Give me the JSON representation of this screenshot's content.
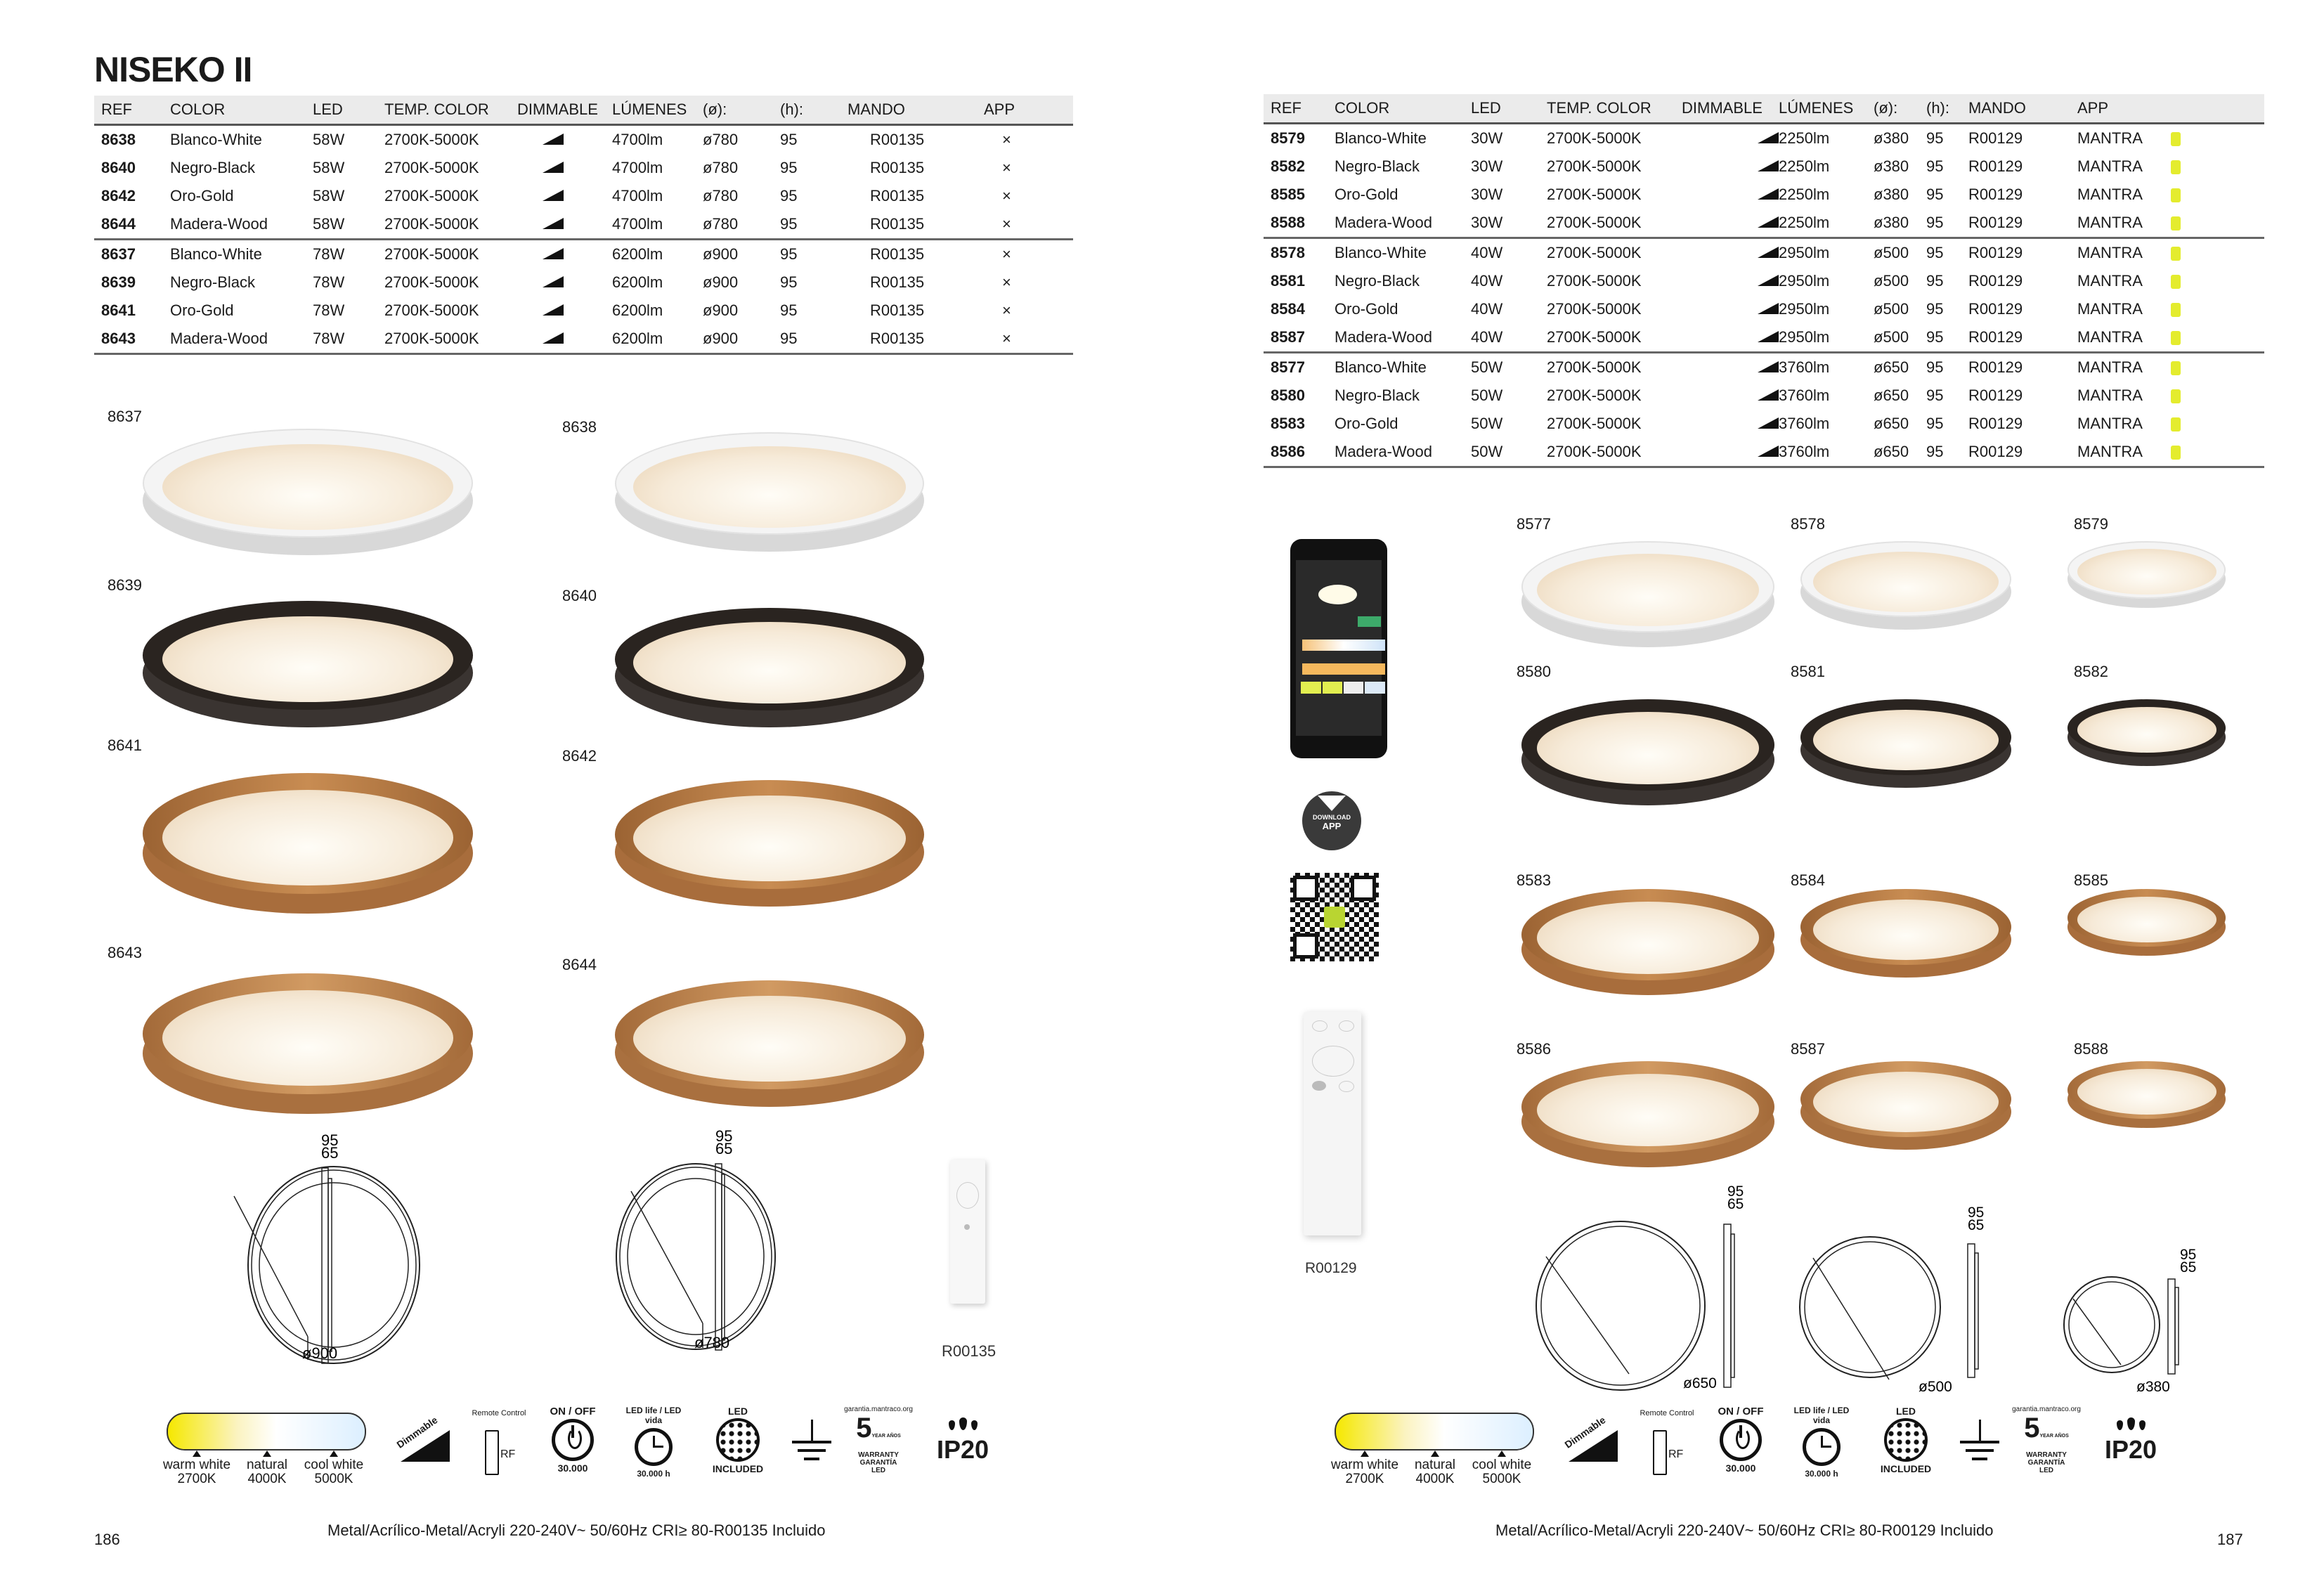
{
  "title": "NISEKO II",
  "headers": [
    "REF",
    "COLOR",
    "LED",
    "TEMP. COLOR",
    "DIMMABLE",
    "LÚMENES",
    "(ø):",
    "(h):",
    "MANDO",
    "APP"
  ],
  "left_table": {
    "rows": [
      {
        "ref": "8638",
        "color": "Blanco-White",
        "led": "58W",
        "temp": "2700K-5000K",
        "lumens": "4700lm",
        "diameter": "ø780",
        "height": "95",
        "mando": "R00135",
        "app": "×"
      },
      {
        "ref": "8640",
        "color": "Negro-Black",
        "led": "58W",
        "temp": "2700K-5000K",
        "lumens": "4700lm",
        "diameter": "ø780",
        "height": "95",
        "mando": "R00135",
        "app": "×"
      },
      {
        "ref": "8642",
        "color": "Oro-Gold",
        "led": "58W",
        "temp": "2700K-5000K",
        "lumens": "4700lm",
        "diameter": "ø780",
        "height": "95",
        "mando": "R00135",
        "app": "×"
      },
      {
        "ref": "8644",
        "color": "Madera-Wood",
        "led": "58W",
        "temp": "2700K-5000K",
        "lumens": "4700lm",
        "diameter": "ø780",
        "height": "95",
        "mando": "R00135",
        "app": "×"
      },
      {
        "ref": "8637",
        "color": "Blanco-White",
        "led": "78W",
        "temp": "2700K-5000K",
        "lumens": "6200lm",
        "diameter": "ø900",
        "height": "95",
        "mando": "R00135",
        "app": "×"
      },
      {
        "ref": "8639",
        "color": "Negro-Black",
        "led": "78W",
        "temp": "2700K-5000K",
        "lumens": "6200lm",
        "diameter": "ø900",
        "height": "95",
        "mando": "R00135",
        "app": "×"
      },
      {
        "ref": "8641",
        "color": "Oro-Gold",
        "led": "78W",
        "temp": "2700K-5000K",
        "lumens": "6200lm",
        "diameter": "ø900",
        "height": "95",
        "mando": "R00135",
        "app": "×"
      },
      {
        "ref": "8643",
        "color": "Madera-Wood",
        "led": "78W",
        "temp": "2700K-5000K",
        "lumens": "6200lm",
        "diameter": "ø900",
        "height": "95",
        "mando": "R00135",
        "app": "×"
      }
    ]
  },
  "right_table": {
    "rows": [
      {
        "ref": "8579",
        "color": "Blanco-White",
        "led": "30W",
        "temp": "2700K-5000K",
        "lumens": "2250lm",
        "diameter": "ø380",
        "height": "95",
        "mando": "R00129",
        "app": "MANTRA"
      },
      {
        "ref": "8582",
        "color": "Negro-Black",
        "led": "30W",
        "temp": "2700K-5000K",
        "lumens": "2250lm",
        "diameter": "ø380",
        "height": "95",
        "mando": "R00129",
        "app": "MANTRA"
      },
      {
        "ref": "8585",
        "color": "Oro-Gold",
        "led": "30W",
        "temp": "2700K-5000K",
        "lumens": "2250lm",
        "diameter": "ø380",
        "height": "95",
        "mando": "R00129",
        "app": "MANTRA"
      },
      {
        "ref": "8588",
        "color": "Madera-Wood",
        "led": "30W",
        "temp": "2700K-5000K",
        "lumens": "2250lm",
        "diameter": "ø380",
        "height": "95",
        "mando": "R00129",
        "app": "MANTRA"
      },
      {
        "ref": "8578",
        "color": "Blanco-White",
        "led": "40W",
        "temp": "2700K-5000K",
        "lumens": "2950lm",
        "diameter": "ø500",
        "height": "95",
        "mando": "R00129",
        "app": "MANTRA"
      },
      {
        "ref": "8581",
        "color": "Negro-Black",
        "led": "40W",
        "temp": "2700K-5000K",
        "lumens": "2950lm",
        "diameter": "ø500",
        "height": "95",
        "mando": "R00129",
        "app": "MANTRA"
      },
      {
        "ref": "8584",
        "color": "Oro-Gold",
        "led": "40W",
        "temp": "2700K-5000K",
        "lumens": "2950lm",
        "diameter": "ø500",
        "height": "95",
        "mando": "R00129",
        "app": "MANTRA"
      },
      {
        "ref": "8587",
        "color": "Madera-Wood",
        "led": "40W",
        "temp": "2700K-5000K",
        "lumens": "2950lm",
        "diameter": "ø500",
        "height": "95",
        "mando": "R00129",
        "app": "MANTRA"
      },
      {
        "ref": "8577",
        "color": "Blanco-White",
        "led": "50W",
        "temp": "2700K-5000K",
        "lumens": "3760lm",
        "diameter": "ø650",
        "height": "95",
        "mando": "R00129",
        "app": "MANTRA"
      },
      {
        "ref": "8580",
        "color": "Negro-Black",
        "led": "50W",
        "temp": "2700K-5000K",
        "lumens": "3760lm",
        "diameter": "ø650",
        "height": "95",
        "mando": "R00129",
        "app": "MANTRA"
      },
      {
        "ref": "8583",
        "color": "Oro-Gold",
        "led": "50W",
        "temp": "2700K-5000K",
        "lumens": "3760lm",
        "diameter": "ø650",
        "height": "95",
        "mando": "R00129",
        "app": "MANTRA"
      },
      {
        "ref": "8586",
        "color": "Madera-Wood",
        "led": "50W",
        "temp": "2700K-5000K",
        "lumens": "3760lm",
        "diameter": "ø650",
        "height": "95",
        "mando": "R00129",
        "app": "MANTRA"
      }
    ]
  },
  "left_lamps": [
    "8637",
    "8638",
    "8639",
    "8640",
    "8641",
    "8642",
    "8643",
    "8644"
  ],
  "right_lamps": [
    "8577",
    "8578",
    "8579",
    "8580",
    "8581",
    "8582",
    "8583",
    "8584",
    "8585",
    "8586",
    "8587",
    "8588"
  ],
  "diagrams": {
    "h_total": "95",
    "h_body": "65",
    "left": [
      "ø900",
      "ø780"
    ],
    "right": [
      "ø650",
      "ø500",
      "ø380"
    ]
  },
  "remotes": {
    "left": "R00135",
    "right": "R00129"
  },
  "download_app": {
    "line1": "DOWNLOAD",
    "line2": "APP"
  },
  "feature_icons": {
    "temps": [
      {
        "name": "warm white",
        "k": "2700K"
      },
      {
        "name": "natural",
        "k": "4000K"
      },
      {
        "name": "cool white",
        "k": "5000K"
      }
    ],
    "dimmable": "Dimmable",
    "remote": "Remote Control",
    "rf": "RF",
    "onoff": "ON / OFF",
    "onoff_cycles": "30.000",
    "ledlife": "LED life / LED vida",
    "ledlife_hours": "30.000 h",
    "led_top": "LED",
    "led_bottom": "INCLUDED",
    "warranty_url": "garantia.mantraco.org",
    "warranty_years": "5",
    "warranty_unit": "YEAR AÑOS",
    "warranty_text": "WARRANTY GARANTÍA LED",
    "ip": "IP20"
  },
  "footer": {
    "left": "Metal/Acrílico-Metal/Acryli 220-240V~ 50/60Hz CRI≥ 80-R00135 Incluido",
    "right": "Metal/Acrílico-Metal/Acryli 220-240V~ 50/60Hz CRI≥ 80-R00129 Incluido"
  },
  "pages": {
    "left": "186",
    "right": "187"
  },
  "colors": {
    "app_icon": "#e4ec2e",
    "header_bg": "#ebebeb",
    "white": "#f4f4f4",
    "black": "#2a2420",
    "gold": "#b07a45",
    "wood": "#b8824f"
  }
}
